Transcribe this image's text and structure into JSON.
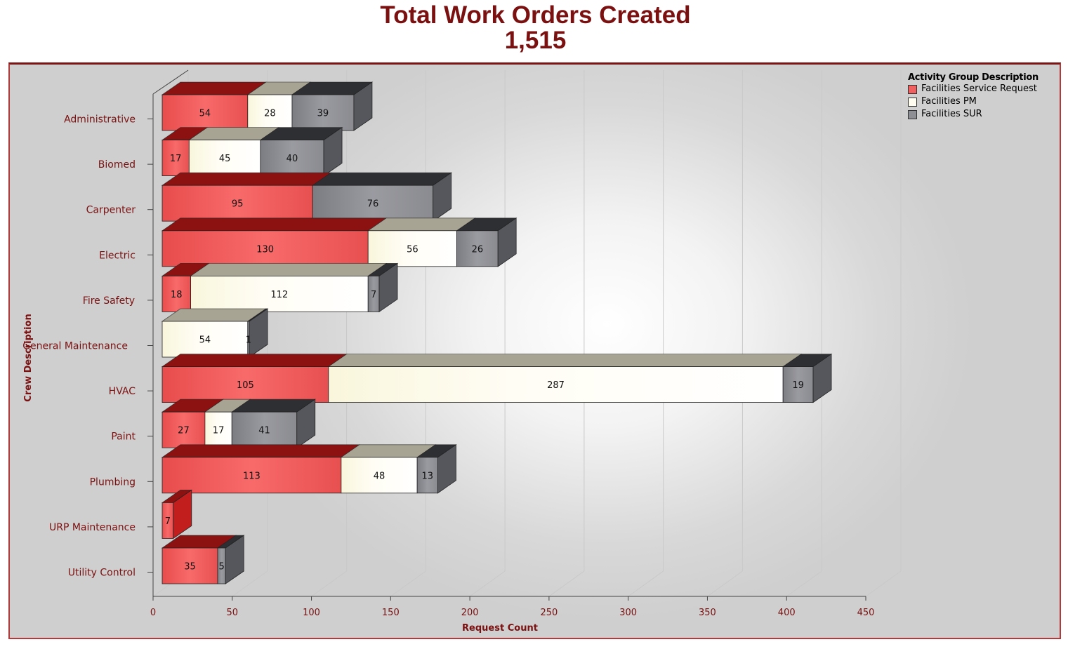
{
  "header": {
    "title": "Total Work Orders Created",
    "total": "1,515"
  },
  "legend": {
    "title": "Activity Group Description",
    "items": [
      {
        "label": "Facilities Service Request",
        "color": "#f06060"
      },
      {
        "label": "Facilities PM",
        "color": "#fffdf0"
      },
      {
        "label": "Facilities SUR",
        "color": "#8e8f94"
      }
    ]
  },
  "chart_data": {
    "type": "bar",
    "orientation": "horizontal",
    "stacked": true,
    "title": "Total Work Orders Created",
    "subtitle": "1,515",
    "xlabel": "Request Count",
    "ylabel": "Crew Description",
    "xlim": [
      0,
      450
    ],
    "xticks": [
      0,
      50,
      100,
      150,
      200,
      250,
      300,
      350,
      400,
      450
    ],
    "grid": true,
    "legend_position": "top-right",
    "categories": [
      "Administrative",
      "Biomed",
      "Carpenter",
      "Electric",
      "Fire Safety",
      "General Maintenance",
      "HVAC",
      "Paint",
      "Plumbing",
      "URP Maintenance",
      "Utility Control"
    ],
    "series": [
      {
        "name": "Facilities Service Request",
        "color": "#f06060",
        "values": [
          54,
          17,
          95,
          130,
          18,
          0,
          105,
          27,
          113,
          7,
          35
        ]
      },
      {
        "name": "Facilities PM",
        "color": "#fffdf0",
        "values": [
          28,
          45,
          0,
          56,
          112,
          54,
          287,
          17,
          48,
          0,
          0
        ]
      },
      {
        "name": "Facilities SUR",
        "color": "#8e8f94",
        "values": [
          39,
          40,
          76,
          26,
          7,
          1,
          19,
          41,
          13,
          0,
          5
        ]
      }
    ]
  }
}
